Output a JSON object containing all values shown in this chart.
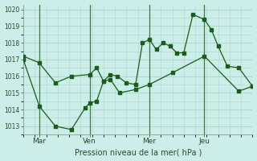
{
  "xlabel": "Pression niveau de la mer( hPa )",
  "bg_color": "#cceee8",
  "grid_color": "#b8ddd8",
  "line_color": "#1a5c1a",
  "ylim": [
    1012.5,
    1020.3
  ],
  "day_labels": [
    "Mar",
    "Ven",
    "Mer",
    "Jeu"
  ],
  "day_positions": [
    0.07,
    0.29,
    0.55,
    0.79
  ],
  "series1_x": [
    0.0,
    0.07,
    0.14,
    0.21,
    0.29,
    0.32,
    0.35,
    0.38,
    0.41,
    0.45,
    0.49,
    0.52,
    0.55,
    0.58,
    0.61,
    0.64,
    0.67,
    0.7,
    0.74,
    0.79,
    0.82,
    0.85,
    0.89,
    0.94,
    1.0
  ],
  "series1_y": [
    1017.2,
    1016.8,
    1015.6,
    1016.0,
    1016.1,
    1016.5,
    1015.7,
    1016.1,
    1016.0,
    1015.6,
    1015.5,
    1018.0,
    1018.2,
    1017.6,
    1018.0,
    1017.8,
    1017.4,
    1017.4,
    1019.7,
    1019.4,
    1018.8,
    1017.8,
    1016.6,
    1016.5,
    1015.4
  ],
  "series2_x": [
    0.0,
    0.07,
    0.14,
    0.21,
    0.27,
    0.29,
    0.32,
    0.35,
    0.38,
    0.42,
    0.49,
    0.55,
    0.65,
    0.79,
    0.94,
    1.0
  ],
  "series2_y": [
    1017.0,
    1014.2,
    1013.0,
    1012.8,
    1014.1,
    1014.4,
    1014.5,
    1015.7,
    1015.8,
    1015.0,
    1015.2,
    1015.5,
    1016.2,
    1017.2,
    1015.1,
    1015.4
  ],
  "yticks": [
    1013,
    1014,
    1015,
    1016,
    1017,
    1018,
    1019,
    1020
  ],
  "vline_color": "#447744"
}
